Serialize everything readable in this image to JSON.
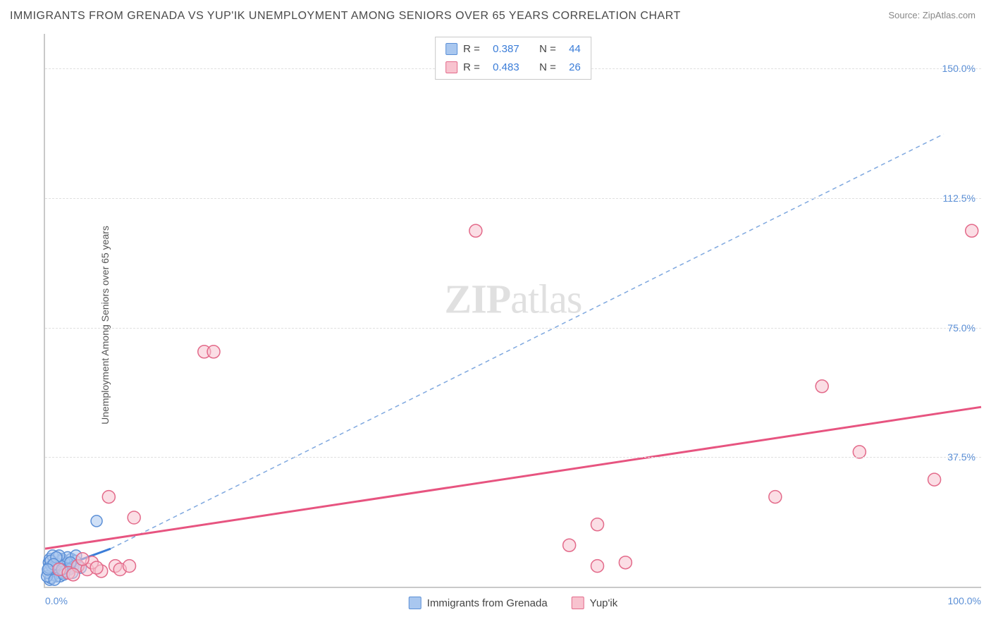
{
  "title": "IMMIGRANTS FROM GRENADA VS YUP'IK UNEMPLOYMENT AMONG SENIORS OVER 65 YEARS CORRELATION CHART",
  "source": "Source: ZipAtlas.com",
  "ylabel": "Unemployment Among Seniors over 65 years",
  "watermark_bold": "ZIP",
  "watermark_rest": "atlas",
  "chart": {
    "type": "scatter",
    "xlim": [
      0,
      100
    ],
    "ylim": [
      0,
      160
    ],
    "yticks": [
      {
        "v": 37.5,
        "label": "37.5%"
      },
      {
        "v": 75.0,
        "label": "75.0%"
      },
      {
        "v": 112.5,
        "label": "112.5%"
      },
      {
        "v": 150.0,
        "label": "150.0%"
      }
    ],
    "xticks": [
      {
        "v": 0,
        "label": "0.0%",
        "align": "left"
      },
      {
        "v": 100,
        "label": "100.0%",
        "align": "right"
      }
    ],
    "grid_color": "#e0e0e0",
    "axis_color": "#c9c9c9",
    "background_color": "#ffffff",
    "series": [
      {
        "name": "Immigrants from Grenada",
        "fill": "#a9c7ef",
        "stroke": "#5b8fd6",
        "marker_r": 8,
        "R": "0.387",
        "N": "44",
        "trend": {
          "x1": 0,
          "y1": 4,
          "x2": 7,
          "y2": 11,
          "stroke": "#3b7dd8",
          "width": 3,
          "dash": "none"
        },
        "trend_ext": {
          "x1": 7,
          "y1": 11,
          "x2": 96,
          "y2": 131,
          "stroke": "#7fa8df",
          "width": 1.5,
          "dash": "6,5"
        },
        "points": [
          {
            "x": 0.5,
            "y": 2
          },
          {
            "x": 1.2,
            "y": 3
          },
          {
            "x": 0.8,
            "y": 5
          },
          {
            "x": 1.5,
            "y": 4
          },
          {
            "x": 2.0,
            "y": 6
          },
          {
            "x": 0.4,
            "y": 7
          },
          {
            "x": 1.8,
            "y": 8
          },
          {
            "x": 2.5,
            "y": 5
          },
          {
            "x": 0.9,
            "y": 3.5
          },
          {
            "x": 1.1,
            "y": 4.5
          },
          {
            "x": 2.2,
            "y": 7
          },
          {
            "x": 3.0,
            "y": 6
          },
          {
            "x": 0.6,
            "y": 2.5
          },
          {
            "x": 1.4,
            "y": 5.5
          },
          {
            "x": 2.8,
            "y": 8
          },
          {
            "x": 0.3,
            "y": 4
          },
          {
            "x": 1.6,
            "y": 3
          },
          {
            "x": 2.3,
            "y": 6.5
          },
          {
            "x": 0.7,
            "y": 6
          },
          {
            "x": 1.9,
            "y": 4
          },
          {
            "x": 3.2,
            "y": 7.5
          },
          {
            "x": 0.5,
            "y": 8
          },
          {
            "x": 1.3,
            "y": 6.5
          },
          {
            "x": 2.6,
            "y": 5
          },
          {
            "x": 0.2,
            "y": 3
          },
          {
            "x": 1.7,
            "y": 7.5
          },
          {
            "x": 2.1,
            "y": 4.5
          },
          {
            "x": 3.5,
            "y": 6
          },
          {
            "x": 0.8,
            "y": 9
          },
          {
            "x": 1.0,
            "y": 2
          },
          {
            "x": 2.4,
            "y": 8.5
          },
          {
            "x": 0.4,
            "y": 5.5
          },
          {
            "x": 1.5,
            "y": 9
          },
          {
            "x": 2.9,
            "y": 4
          },
          {
            "x": 0.6,
            "y": 7.5
          },
          {
            "x": 3.8,
            "y": 5.5
          },
          {
            "x": 1.2,
            "y": 8.5
          },
          {
            "x": 2.0,
            "y": 3.5
          },
          {
            "x": 0.9,
            "y": 6.5
          },
          {
            "x": 3.3,
            "y": 9
          },
          {
            "x": 1.8,
            "y": 5
          },
          {
            "x": 2.7,
            "y": 7
          },
          {
            "x": 0.3,
            "y": 5
          },
          {
            "x": 5.5,
            "y": 19
          }
        ]
      },
      {
        "name": "Yup'ik",
        "fill": "#f8c3cf",
        "stroke": "#e36a8a",
        "marker_r": 9,
        "R": "0.483",
        "N": "26",
        "trend": {
          "x1": 0,
          "y1": 11,
          "x2": 100,
          "y2": 52,
          "stroke": "#e75480",
          "width": 3,
          "dash": "none"
        },
        "points": [
          {
            "x": 1.5,
            "y": 5
          },
          {
            "x": 2.5,
            "y": 4
          },
          {
            "x": 3.5,
            "y": 6
          },
          {
            "x": 4.5,
            "y": 5
          },
          {
            "x": 5.0,
            "y": 7
          },
          {
            "x": 6.0,
            "y": 4.5
          },
          {
            "x": 7.5,
            "y": 6
          },
          {
            "x": 4.0,
            "y": 8
          },
          {
            "x": 3.0,
            "y": 3.5
          },
          {
            "x": 5.5,
            "y": 5.5
          },
          {
            "x": 6.8,
            "y": 26
          },
          {
            "x": 9.5,
            "y": 20
          },
          {
            "x": 8.0,
            "y": 5
          },
          {
            "x": 9.0,
            "y": 6
          },
          {
            "x": 17,
            "y": 68
          },
          {
            "x": 18,
            "y": 68
          },
          {
            "x": 46,
            "y": 103
          },
          {
            "x": 56,
            "y": 12
          },
          {
            "x": 59,
            "y": 6
          },
          {
            "x": 59,
            "y": 18
          },
          {
            "x": 62,
            "y": 7
          },
          {
            "x": 78,
            "y": 26
          },
          {
            "x": 83,
            "y": 58
          },
          {
            "x": 87,
            "y": 39
          },
          {
            "x": 95,
            "y": 31
          },
          {
            "x": 99,
            "y": 103
          }
        ]
      }
    ],
    "bottom_legend": [
      {
        "label": "Immigrants from Grenada",
        "fill": "#a9c7ef",
        "stroke": "#5b8fd6"
      },
      {
        "label": "Yup'ik",
        "fill": "#f8c3cf",
        "stroke": "#e36a8a"
      }
    ]
  }
}
